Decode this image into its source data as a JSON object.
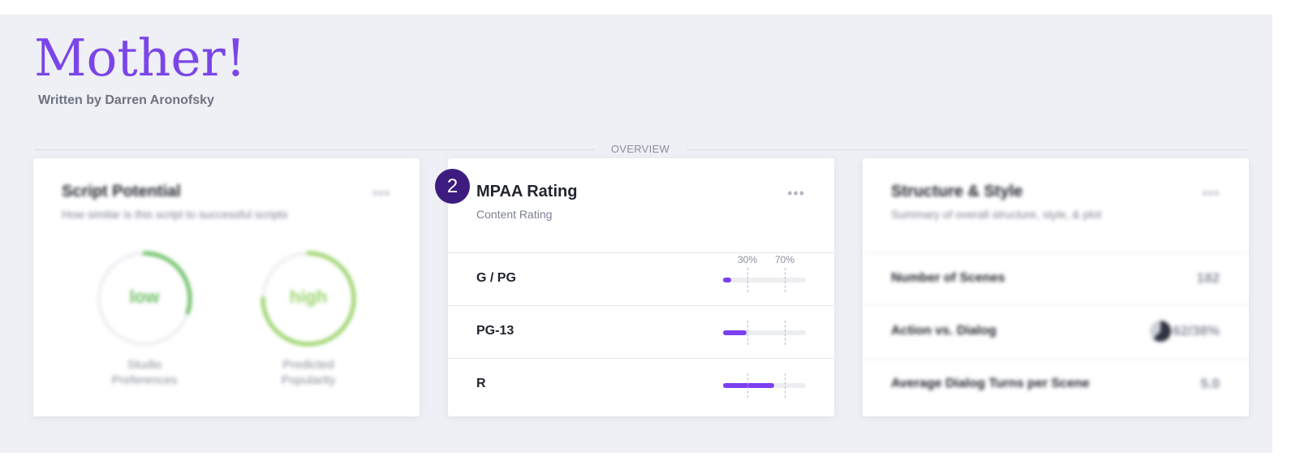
{
  "header": {
    "title": "Mother!",
    "subtitle": "Written by Darren Aronofsky"
  },
  "section": {
    "label": "OVERVIEW"
  },
  "badge": {
    "number": "2"
  },
  "cards": {
    "script_potential": {
      "title": "Script Potential",
      "subtitle": "How similar is this script to successful scripts",
      "menu": "•••",
      "gauges": [
        {
          "word": "low",
          "caption": "Studio Preferences",
          "level": 0.3,
          "color": "#6fbf67"
        },
        {
          "word": "high",
          "caption": "Predicted Popularity",
          "level": 0.75,
          "color": "#9bd36b"
        }
      ]
    },
    "mpaa": {
      "title": "MPAA Rating",
      "subtitle": "Content Rating",
      "menu": "•••",
      "thresholds": [
        "30%",
        "70%"
      ],
      "accent": "#7b3ff0",
      "ratings": [
        {
          "label": "G / PG",
          "level": 0.1
        },
        {
          "label": "PG-13",
          "level": 0.28
        },
        {
          "label": "R",
          "level": 0.62
        }
      ]
    },
    "structure": {
      "title": "Structure & Style",
      "subtitle": "Summary of overall structure, style, & plot",
      "menu": "•••",
      "rows": [
        {
          "label": "Number of Scenes",
          "value": "182"
        },
        {
          "label": "Action vs. Dialog",
          "value": "62/38%"
        },
        {
          "label": "Average Dialog Turns per Scene",
          "value": "5.0"
        }
      ]
    }
  }
}
